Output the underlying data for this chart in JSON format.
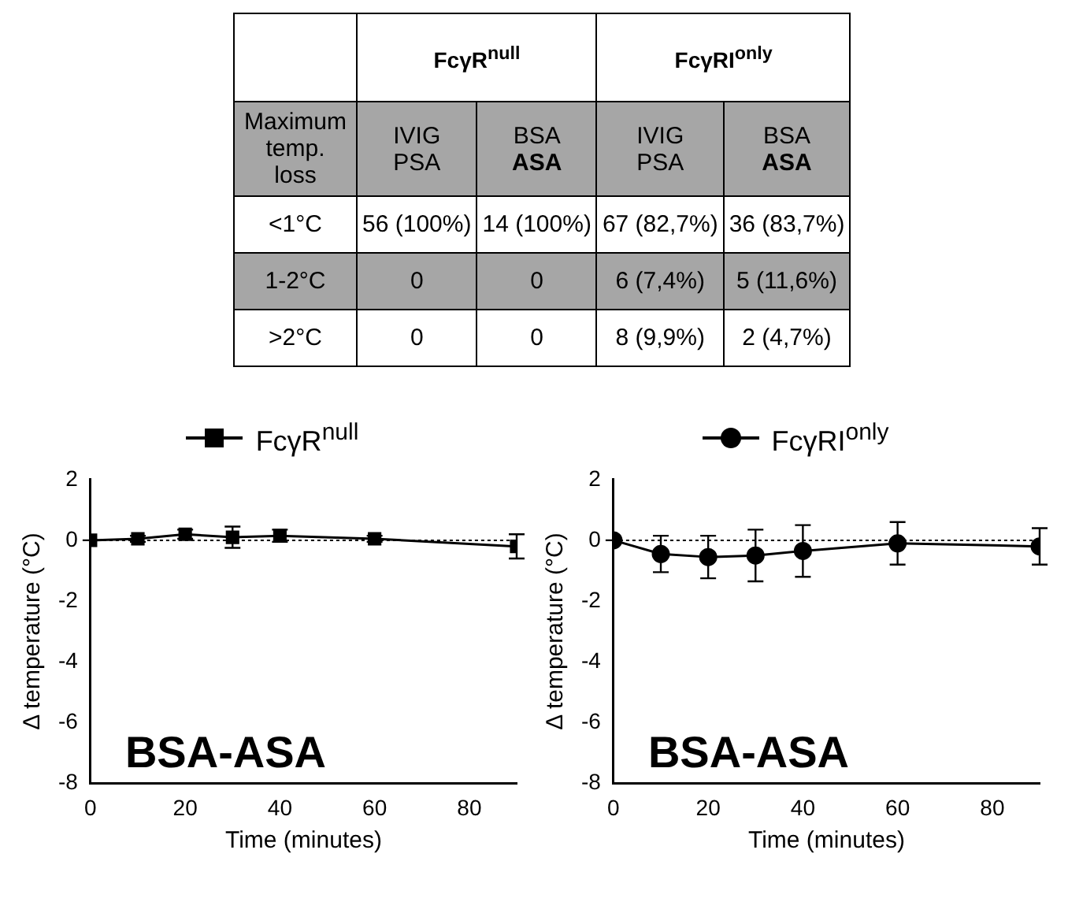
{
  "chart_data": [
    {
      "type": "other",
      "ylabel": "Maximum temp. loss",
      "annotations": [
        "FcγR$^{null}$",
        "FcγRI$^{only}$"
      ],
      "categories": [
        "IVIG PSA",
        "BSA ASA",
        "IVIG PSA",
        "BSA ASA"
      ],
      "y_categories": [
        "<1°C",
        "1-2°C",
        ">2°C"
      ],
      "cell_labels": [
        [
          "56 (100%)",
          "14 (100%)",
          "67 (82,7%)",
          "36 (83,7%)"
        ],
        [
          "0",
          "0",
          "6 (7,4%)",
          "5 (11,6%)"
        ],
        [
          "0",
          "0",
          "8 (9,9%)",
          "2 (4,7%)"
        ]
      ]
    },
    {
      "type": "line",
      "xlabel": "Time (minutes)",
      "ylabel": "Δ temperature (°C)",
      "annotations": [
        "BSA-ASA"
      ],
      "xlim": [
        0,
        90
      ],
      "xticks": [
        0,
        20,
        40,
        60,
        80
      ],
      "ylim": [
        -8,
        2
      ],
      "yticks": [
        -8,
        -6,
        -4,
        -2,
        0,
        2
      ],
      "legend": "top",
      "marker": "square",
      "grid": false,
      "ref_lines": [
        {
          "axis": "y",
          "value": 0,
          "line_style": "dotted"
        }
      ],
      "x": [
        0,
        10,
        20,
        30,
        40,
        60,
        90
      ],
      "series": [
        {
          "name": "FcγR$^{null}$",
          "color": "#000000",
          "values": [
            0,
            0.05,
            0.2,
            0.1,
            0.15,
            0.05,
            -0.2
          ],
          "errors": [
            0,
            0.1,
            0.15,
            0.35,
            0.2,
            0.1,
            0.4
          ]
        }
      ]
    },
    {
      "type": "line",
      "xlabel": "Time (minutes)",
      "ylabel": "Δ temperature (°C)",
      "annotations": [
        "BSA-ASA"
      ],
      "xlim": [
        0,
        90
      ],
      "xticks": [
        0,
        20,
        40,
        60,
        80
      ],
      "ylim": [
        -8,
        2
      ],
      "yticks": [
        -8,
        -6,
        -4,
        -2,
        0,
        2
      ],
      "legend": "top",
      "marker": "circle",
      "grid": false,
      "ref_lines": [
        {
          "axis": "y",
          "value": 0,
          "line_style": "dotted"
        }
      ],
      "x": [
        0,
        10,
        20,
        30,
        40,
        60,
        90
      ],
      "series": [
        {
          "name": "FcγRI$^{only}$",
          "color": "#000000",
          "values": [
            0,
            -0.45,
            -0.55,
            -0.5,
            -0.35,
            -0.1,
            -0.2
          ],
          "errors": [
            0,
            0.6,
            0.7,
            0.85,
            0.85,
            0.7,
            0.6
          ]
        }
      ]
    }
  ]
}
